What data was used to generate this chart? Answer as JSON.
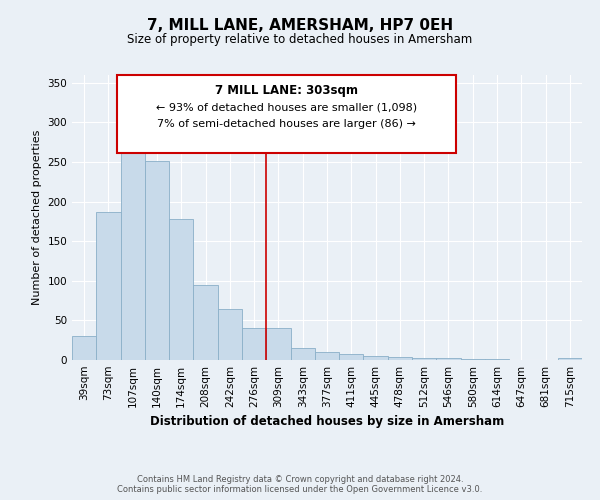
{
  "title": "7, MILL LANE, AMERSHAM, HP7 0EH",
  "subtitle": "Size of property relative to detached houses in Amersham",
  "xlabel": "Distribution of detached houses by size in Amersham",
  "ylabel": "Number of detached properties",
  "bar_labels": [
    "39sqm",
    "73sqm",
    "107sqm",
    "140sqm",
    "174sqm",
    "208sqm",
    "242sqm",
    "276sqm",
    "309sqm",
    "343sqm",
    "377sqm",
    "411sqm",
    "445sqm",
    "478sqm",
    "512sqm",
    "546sqm",
    "580sqm",
    "614sqm",
    "647sqm",
    "681sqm",
    "715sqm"
  ],
  "bar_values": [
    30,
    187,
    267,
    251,
    178,
    95,
    65,
    41,
    40,
    15,
    10,
    8,
    5,
    4,
    3,
    2,
    1,
    1,
    0,
    0,
    2
  ],
  "bar_color": "#c8daea",
  "bar_edge_color": "#8aafc8",
  "vline_x_idx": 8,
  "vline_color": "#cc0000",
  "annotation_title": "7 MILL LANE: 303sqm",
  "annotation_line1": "← 93% of detached houses are smaller (1,098)",
  "annotation_line2": "7% of semi-detached houses are larger (86) →",
  "annotation_box_edgecolor": "#cc0000",
  "annotation_bg_color": "#ffffff",
  "ylim": [
    0,
    360
  ],
  "yticks": [
    0,
    50,
    100,
    150,
    200,
    250,
    300,
    350
  ],
  "footer1": "Contains HM Land Registry data © Crown copyright and database right 2024.",
  "footer2": "Contains public sector information licensed under the Open Government Licence v3.0.",
  "bg_color": "#eaf0f6",
  "plot_bg_color": "#eaf0f6",
  "grid_color": "#ffffff",
  "title_fontsize": 11,
  "subtitle_fontsize": 8.5,
  "xlabel_fontsize": 8.5,
  "ylabel_fontsize": 8,
  "tick_fontsize": 7.5,
  "footer_fontsize": 6,
  "ann_title_fontsize": 8.5,
  "ann_body_fontsize": 8
}
